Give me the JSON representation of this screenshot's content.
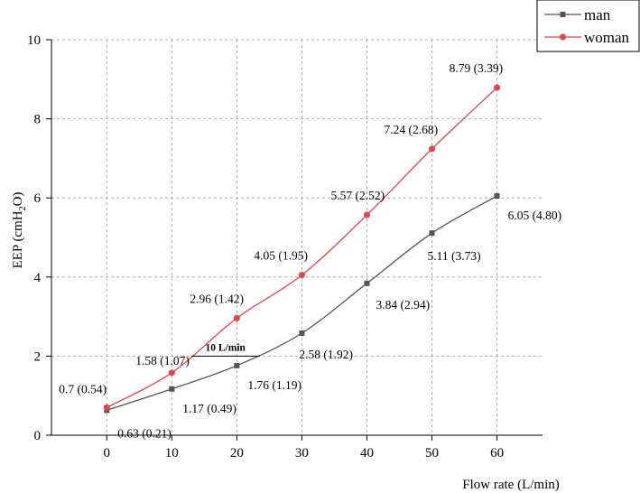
{
  "chart_data": {
    "type": "line",
    "x": [
      0,
      10,
      20,
      30,
      40,
      50,
      60
    ],
    "xlabel": "Flow rate (L/min)",
    "ylabel": "EEP (cmH2O)",
    "ylabel_parts": {
      "main": "EEP (cmH",
      "sub": "2",
      "end": "O)"
    },
    "xlim": [
      -8.5,
      67
    ],
    "ylim": [
      0,
      10
    ],
    "xticks": [
      0,
      10,
      20,
      30,
      40,
      50,
      60
    ],
    "yticks": [
      0,
      2,
      4,
      6,
      8,
      10
    ],
    "grid": true,
    "legend_position": "top-right",
    "series": [
      {
        "name": "man",
        "color": "#555555",
        "marker": "square",
        "values": [
          0.63,
          1.17,
          1.76,
          2.58,
          3.84,
          5.11,
          6.05
        ],
        "labels": [
          "0.63 (0.21)",
          "1.17 (0.49)",
          "1.76 (1.19)",
          "2.58 (1.92)",
          "3.84 (2.94)",
          "5.11 (3.73)",
          "6.05 (4.80)"
        ]
      },
      {
        "name": "woman",
        "color": "#e0484c",
        "marker": "circle",
        "values": [
          0.7,
          1.58,
          2.96,
          4.05,
          5.57,
          7.24,
          8.79
        ],
        "labels": [
          "0.7 (0.54)",
          "1.58 (1.07)",
          "2.96 (1.42)",
          "4.05 (1.95)",
          "5.57 (2.52)",
          "7.24 (2.68)",
          "8.79 (3.39)"
        ]
      }
    ],
    "annotation": {
      "text": "10 L/min",
      "x_from": 13,
      "x_to": 23.5,
      "y": 2.0
    }
  }
}
